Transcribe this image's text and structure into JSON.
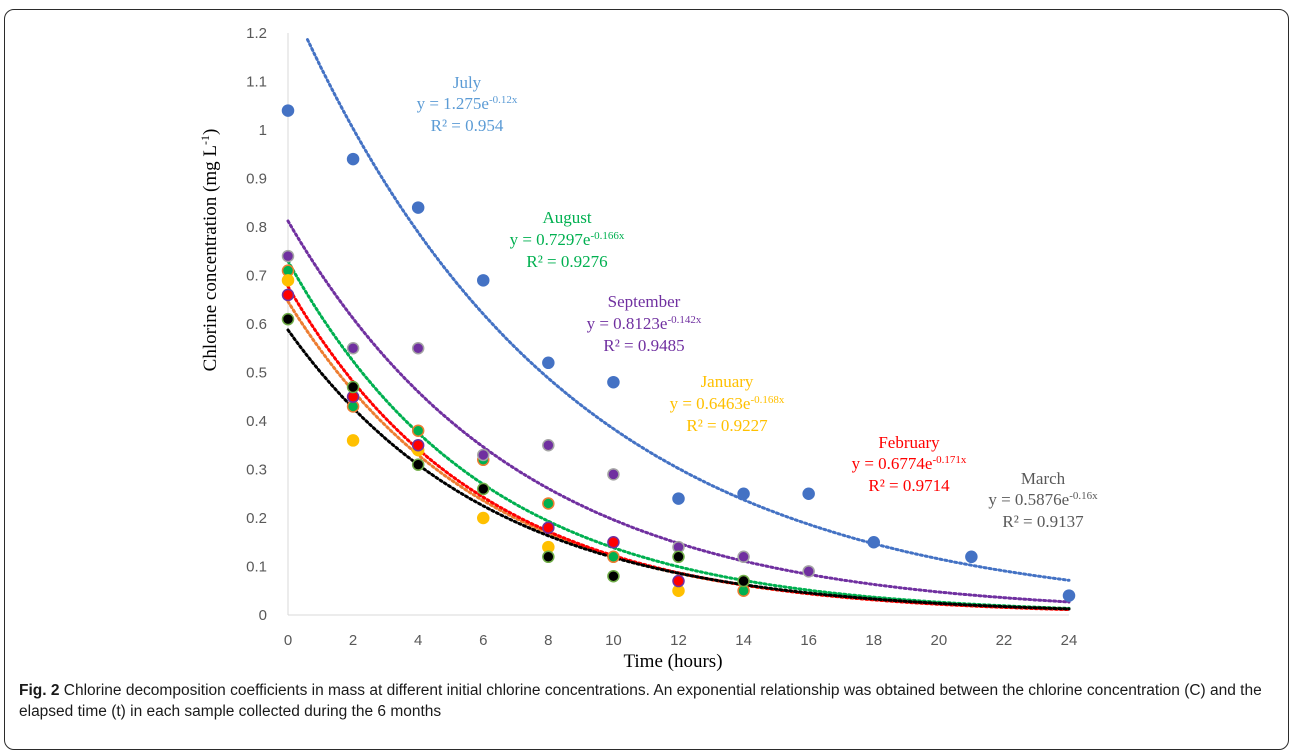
{
  "figure": {
    "caption_label": "Fig. 2",
    "caption_text": " Chlorine decomposition coefficients in mass at different initial chlorine concentrations. An exponential relationship was obtained between the chlorine concentration (C) and the elapsed time (t) in each sample collected during the 6 months"
  },
  "chart_data": {
    "type": "scatter",
    "xlabel": "Time (hours)",
    "ylabel_main": "Chlorine concentration (mg  L",
    "ylabel_sup": "-1",
    "ylabel_tail": ")",
    "xlim": [
      0,
      24
    ],
    "ylim": [
      0,
      1.2
    ],
    "x_ticks": [
      "0",
      "2",
      "4",
      "6",
      "8",
      "10",
      "12",
      "14",
      "16",
      "18",
      "20",
      "22",
      "24"
    ],
    "y_ticks": [
      "0",
      "0.1",
      "0.2",
      "0.3",
      "0.4",
      "0.5",
      "0.6",
      "0.7",
      "0.8",
      "0.9",
      "1",
      "1.1",
      "1.2"
    ],
    "grid": false,
    "trendline": "exponential",
    "series": [
      {
        "name": "July",
        "color": "#4472C4",
        "trend_color": "#4472C4",
        "outline": "#4472C4",
        "equation_prefix": "y = 1.275e",
        "equation_exp": "-0.12x",
        "r2": "R² = 0.954",
        "a": 1.275,
        "b": -0.12,
        "x": [
          0,
          2,
          4,
          6,
          8,
          10,
          12,
          14,
          16,
          18,
          21,
          24
        ],
        "y": [
          1.04,
          0.94,
          0.84,
          0.69,
          0.52,
          0.48,
          0.24,
          0.25,
          0.25,
          0.15,
          0.12,
          0.04
        ]
      },
      {
        "name": "August",
        "color": "#00B050",
        "trend_color": "#00B050",
        "outline": "#ED7D31",
        "equation_prefix": "y = 0.7297e",
        "equation_exp": "-0.166x",
        "r2": "R² = 0.9276",
        "a": 0.7297,
        "b": -0.166,
        "x": [
          0,
          2,
          4,
          6,
          8,
          10,
          14
        ],
        "y": [
          0.71,
          0.43,
          0.38,
          0.32,
          0.23,
          0.12,
          0.05
        ]
      },
      {
        "name": "September",
        "color": "#7030A0",
        "trend_color": "#7030A0",
        "outline": "#A5A5A5",
        "equation_prefix": "y = 0.8123e",
        "equation_exp": "-0.142x",
        "r2": "R² = 0.9485",
        "a": 0.8123,
        "b": -0.142,
        "x": [
          0,
          2,
          4,
          6,
          8,
          10,
          12,
          14,
          16
        ],
        "y": [
          0.74,
          0.55,
          0.55,
          0.33,
          0.35,
          0.29,
          0.14,
          0.12,
          0.09
        ]
      },
      {
        "name": "January",
        "color": "#FFC000",
        "trend_color": "#ED7D31",
        "outline": "#FFC000",
        "equation_prefix": "y = 0.6463e",
        "equation_exp": "-0.168x",
        "r2": "R² = 0.9227",
        "a": 0.6463,
        "b": -0.168,
        "x": [
          0,
          2,
          4,
          6,
          8,
          12
        ],
        "y": [
          0.69,
          0.36,
          0.34,
          0.2,
          0.14,
          0.05
        ]
      },
      {
        "name": "February",
        "color": "#FF0000",
        "trend_color": "#FF0000",
        "outline": "#7030A0",
        "equation_prefix": "y = 0.6774e",
        "equation_exp": "-0.171x",
        "r2": "R² = 0.9714",
        "a": 0.6774,
        "b": -0.171,
        "x": [
          0,
          2,
          4,
          8,
          10,
          12
        ],
        "y": [
          0.66,
          0.45,
          0.35,
          0.18,
          0.15,
          0.07
        ]
      },
      {
        "name": "March",
        "color": "#000000",
        "trend_color": "#000000",
        "outline": "#70AD47",
        "equation_prefix": "y = 0.5876e",
        "equation_exp": "-0.16x",
        "r2": "R² = 0.9137",
        "a": 0.5876,
        "b": -0.16,
        "x": [
          0,
          2,
          4,
          6,
          8,
          10,
          12,
          14
        ],
        "y": [
          0.61,
          0.47,
          0.31,
          0.26,
          0.12,
          0.08,
          0.12,
          0.07
        ]
      }
    ],
    "annotation_colors": {
      "July": "#5B9BD5",
      "August": "#00B050",
      "September": "#7030A0",
      "January": "#FFC000",
      "February": "#FF0000",
      "March": "#595959"
    }
  }
}
